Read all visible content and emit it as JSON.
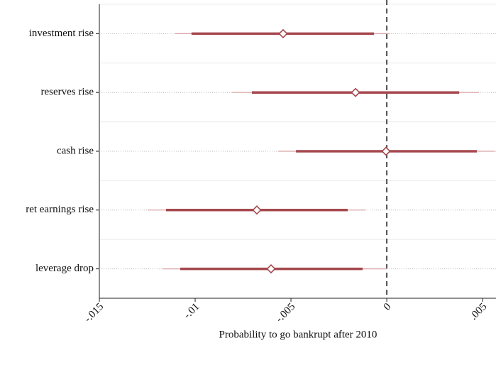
{
  "chart_data": {
    "type": "coefplot",
    "xlabel": "Probability to go bankrupt after 2010",
    "categories": [
      "investment rise",
      "reserves rise",
      "cash rise",
      "ret earnings rise",
      "leverage drop"
    ],
    "values": [
      -0.00541,
      -0.00163,
      -4e-05,
      -0.00678,
      -0.00604
    ],
    "ci_inner": [
      [
        -0.01019,
        -0.00067
      ],
      [
        -0.00704,
        0.00378
      ],
      [
        -0.00474,
        0.0047
      ],
      [
        -0.01152,
        -0.00204
      ],
      [
        -0.01078,
        -0.00126
      ]
    ],
    "ci_outer": [
      [
        -0.01104,
        0.00015
      ],
      [
        -0.00807,
        0.00481
      ],
      [
        -0.00567,
        0.00563
      ],
      [
        -0.01248,
        -0.00111
      ],
      [
        -0.0117,
        0
      ]
    ],
    "color": "#a5484e",
    "outer_color": "#d9a3a6",
    "xlim": [
      -0.015,
      0.0057
    ],
    "xticks": [
      {
        "value": -0.015,
        "label": "-.015"
      },
      {
        "value": -0.01,
        "label": "-.01"
      },
      {
        "value": -0.005,
        "label": "-.005"
      },
      0,
      {
        "value": 0.005,
        "label": ".005"
      }
    ],
    "refline": 0,
    "grid": true
  }
}
